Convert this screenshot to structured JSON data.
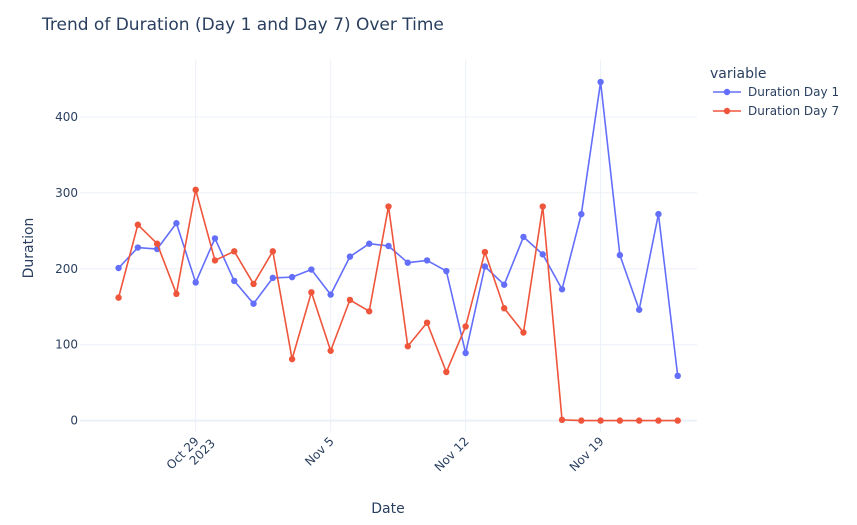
{
  "chart_data": {
    "type": "line",
    "title": "Trend of Duration (Day 1 and Day 7) Over Time",
    "xlabel": "Date",
    "ylabel": "Duration",
    "x_tick_labels": [
      {
        "date": "2023-10-29",
        "line1": "Oct 29",
        "line2": "2023"
      },
      {
        "date": "2023-11-05",
        "line1": "Nov 5",
        "line2": ""
      },
      {
        "date": "2023-11-12",
        "line1": "Nov 12",
        "line2": ""
      },
      {
        "date": "2023-11-19",
        "line1": "Nov 19",
        "line2": ""
      }
    ],
    "y_ticks": [
      0,
      100,
      200,
      300,
      400
    ],
    "ylim": [
      -15,
      475
    ],
    "xlim": [
      "2023-10-23",
      "2023-11-24"
    ],
    "legend_title": "variable",
    "legend_position": "top-right",
    "grid": true,
    "x": [
      "2023-10-25",
      "2023-10-26",
      "2023-10-27",
      "2023-10-28",
      "2023-10-29",
      "2023-10-30",
      "2023-10-31",
      "2023-11-01",
      "2023-11-02",
      "2023-11-03",
      "2023-11-04",
      "2023-11-05",
      "2023-11-06",
      "2023-11-07",
      "2023-11-08",
      "2023-11-09",
      "2023-11-10",
      "2023-11-11",
      "2023-11-12",
      "2023-11-13",
      "2023-11-14",
      "2023-11-15",
      "2023-11-16",
      "2023-11-17",
      "2023-11-18",
      "2023-11-19",
      "2023-11-20",
      "2023-11-21",
      "2023-11-22",
      "2023-11-23"
    ],
    "series": [
      {
        "name": "Duration Day 1",
        "color": "#636efa",
        "values": [
          201,
          228,
          226,
          260,
          182,
          240,
          184,
          154,
          188,
          189,
          199,
          166,
          216,
          233,
          230,
          208,
          211,
          197,
          89,
          203,
          179,
          242,
          219,
          173,
          272,
          446,
          218,
          146,
          272,
          59
        ]
      },
      {
        "name": "Duration Day 7",
        "color": "#ef553b",
        "values": [
          162,
          258,
          233,
          167,
          304,
          211,
          223,
          180,
          223,
          81,
          169,
          92,
          159,
          144,
          282,
          98,
          129,
          64,
          124,
          222,
          148,
          116,
          282,
          1,
          0,
          0,
          0,
          0,
          0,
          0
        ]
      }
    ]
  }
}
